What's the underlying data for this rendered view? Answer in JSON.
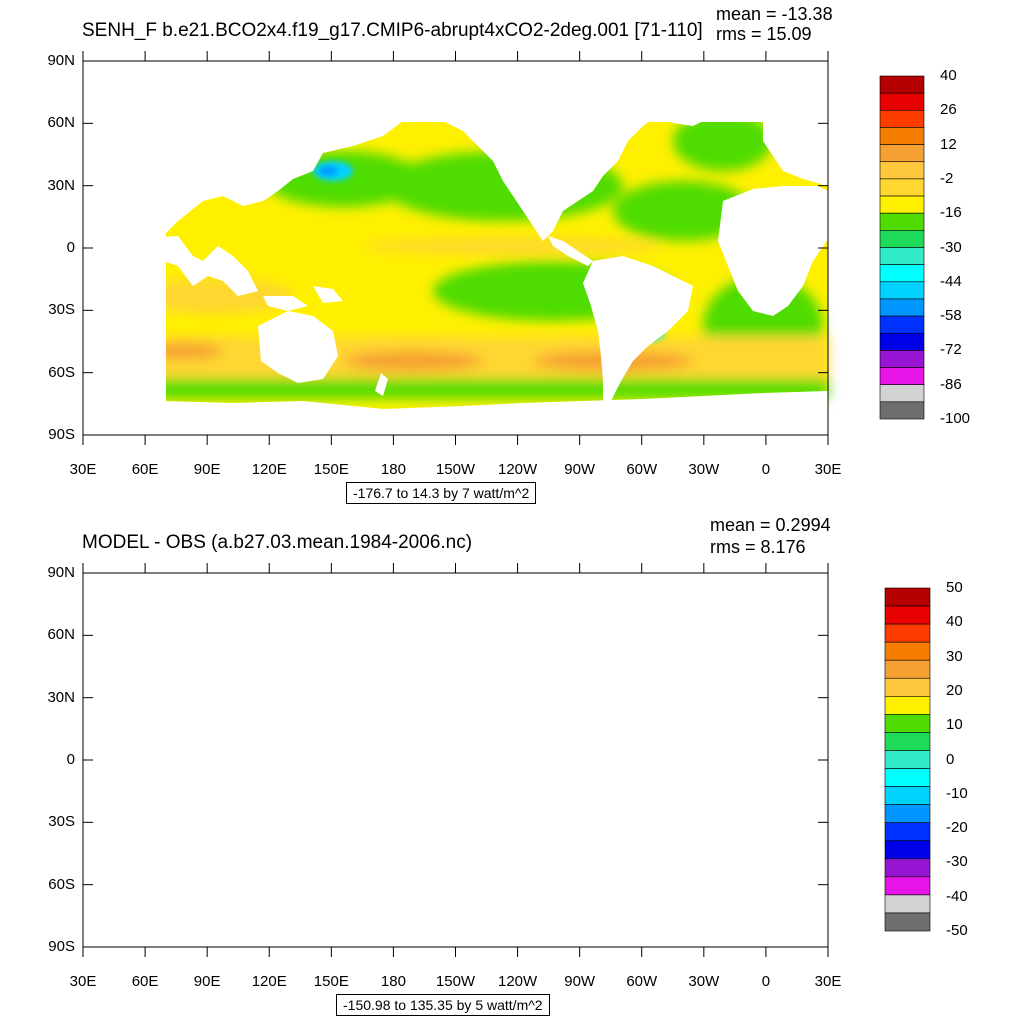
{
  "panels": [
    {
      "title": "SENH_F b.e21.BCO2x4.f19_g17.CMIP6-abrupt4xCO2-2deg.001 [71-110]",
      "mean_label": "mean = -13.38",
      "rms_label": "rms = 15.09",
      "range_label": "-176.7 to 14.3 by 7 watt/m^2",
      "colorbar": {
        "labels": [
          "40",
          "26",
          "12",
          "-2",
          "-16",
          "-30",
          "-44",
          "-58",
          "-72",
          "-86",
          "-100"
        ],
        "colors": [
          "#b40000",
          "#e60000",
          "#ff3c00",
          "#f57d00",
          "#f5a032",
          "#ffc83c",
          "#ffd730",
          "#fff000",
          "#50dc00",
          "#1edc5a",
          "#32ebc8",
          "#00ffff",
          "#00d2ff",
          "#0096ff",
          "#0032ff",
          "#0000e6",
          "#9614d2",
          "#e614e6",
          "#d2d2d2",
          "#6e6e6e"
        ]
      }
    },
    {
      "title": "MODEL - OBS (a.b27.03.mean.1984-2006.nc)",
      "mean_label": "mean = 0.2994",
      "rms_label": "rms = 8.176",
      "range_label": "-150.98 to 135.35 by 5 watt/m^2",
      "colorbar": {
        "labels": [
          "50",
          "40",
          "30",
          "20",
          "10",
          "0",
          "-10",
          "-20",
          "-30",
          "-40",
          "-50"
        ],
        "colors": [
          "#b40000",
          "#e60000",
          "#ff3c00",
          "#f57d00",
          "#f5a032",
          "#ffc83c",
          "#fff000",
          "#50dc00",
          "#1edc5a",
          "#32ebc8",
          "#00ffff",
          "#00d2ff",
          "#0096ff",
          "#0032ff",
          "#0000e6",
          "#9614d2",
          "#e614e6",
          "#d2d2d2",
          "#6e6e6e"
        ]
      }
    }
  ],
  "x_ticks": [
    "30E",
    "60E",
    "90E",
    "120E",
    "150E",
    "180",
    "150W",
    "120W",
    "90W",
    "60W",
    "30W",
    "0",
    "30E"
  ],
  "y_ticks": [
    "90N",
    "60N",
    "30N",
    "0",
    "30S",
    "60S",
    "90S"
  ]
}
